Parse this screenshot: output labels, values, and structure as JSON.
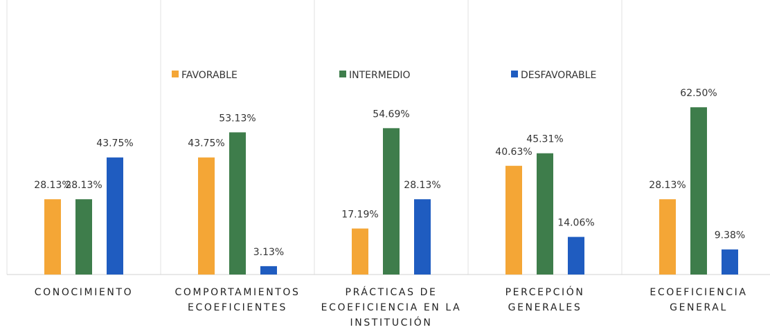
{
  "chart_data": {
    "type": "bar",
    "categories": [
      "CONOCIMIENTO",
      "COMPORTAMIENTOS ECOEFICIENTES",
      "PRÁCTICAS DE ECOEFICIENCIA EN LA INSTITUCIÓN",
      "PERCEPCIÓN GENERALES",
      "ECOEFICIENCIA GENERAL"
    ],
    "series": [
      {
        "name": "FAVORABLE",
        "color": "#f4a636",
        "values": [
          28.13,
          43.75,
          17.19,
          40.63,
          28.13
        ],
        "value_labels": [
          "28.13%",
          "43.75%",
          "17.19%",
          "40.63%",
          "28.13%"
        ]
      },
      {
        "name": "INTERMEDIO",
        "color": "#3e7d4b",
        "values": [
          28.13,
          53.13,
          54.69,
          45.31,
          62.5
        ],
        "value_labels": [
          "28.13%",
          "53.13%",
          "54.69%",
          "45.31%",
          "62.50%"
        ]
      },
      {
        "name": "DESFAVORABLE",
        "color": "#1f5cc0",
        "values": [
          43.75,
          3.13,
          28.13,
          14.06,
          9.38
        ],
        "value_labels": [
          "43.75%",
          "3.13%",
          "28.13%",
          "14.06%",
          "9.38%"
        ]
      }
    ],
    "ylim": [
      0,
      100
    ],
    "legend": "top"
  }
}
